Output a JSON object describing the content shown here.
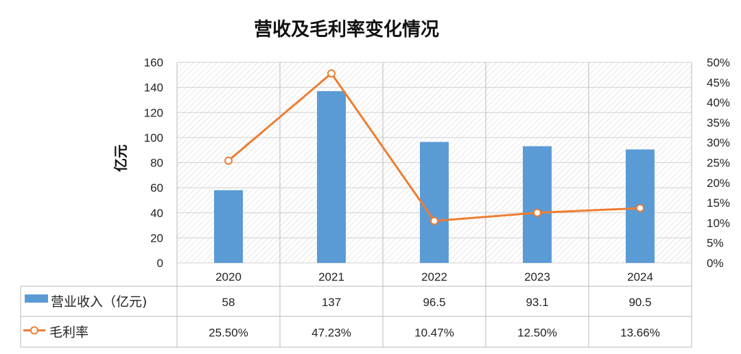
{
  "colors": {
    "bar": "#5b9bd5",
    "line": "#ed7d31",
    "grid": "#d0d0d0",
    "table_border": "#b8b8b8"
  },
  "chart_data": {
    "type": "bar",
    "title": "营收及毛利率变化情况",
    "categories": [
      "2020",
      "2021",
      "2022",
      "2023",
      "2024"
    ],
    "ylabel": "亿元",
    "ylim": [
      0,
      160
    ],
    "y_ticks": [
      "0",
      "20",
      "40",
      "60",
      "80",
      "100",
      "120",
      "140",
      "160"
    ],
    "y2lim": [
      0,
      0.5
    ],
    "y2_ticks": [
      "0%",
      "5%",
      "10%",
      "15%",
      "20%",
      "25%",
      "30%",
      "35%",
      "40%",
      "45%",
      "50%"
    ],
    "grid": true,
    "legend": "data-table",
    "series": [
      {
        "name": "营业收入（亿元)",
        "kind": "bar",
        "axis": "left",
        "values": [
          58,
          137,
          96.5,
          93.1,
          90.5
        ],
        "labels": [
          "58",
          "137",
          "96.5",
          "93.1",
          "90.5"
        ]
      },
      {
        "name": "毛利率",
        "kind": "line",
        "axis": "right",
        "values": [
          0.255,
          0.4723,
          0.1047,
          0.125,
          0.1366
        ],
        "labels": [
          "25.50%",
          "47.23%",
          "10.47%",
          "12.50%",
          "13.66%"
        ]
      }
    ]
  }
}
